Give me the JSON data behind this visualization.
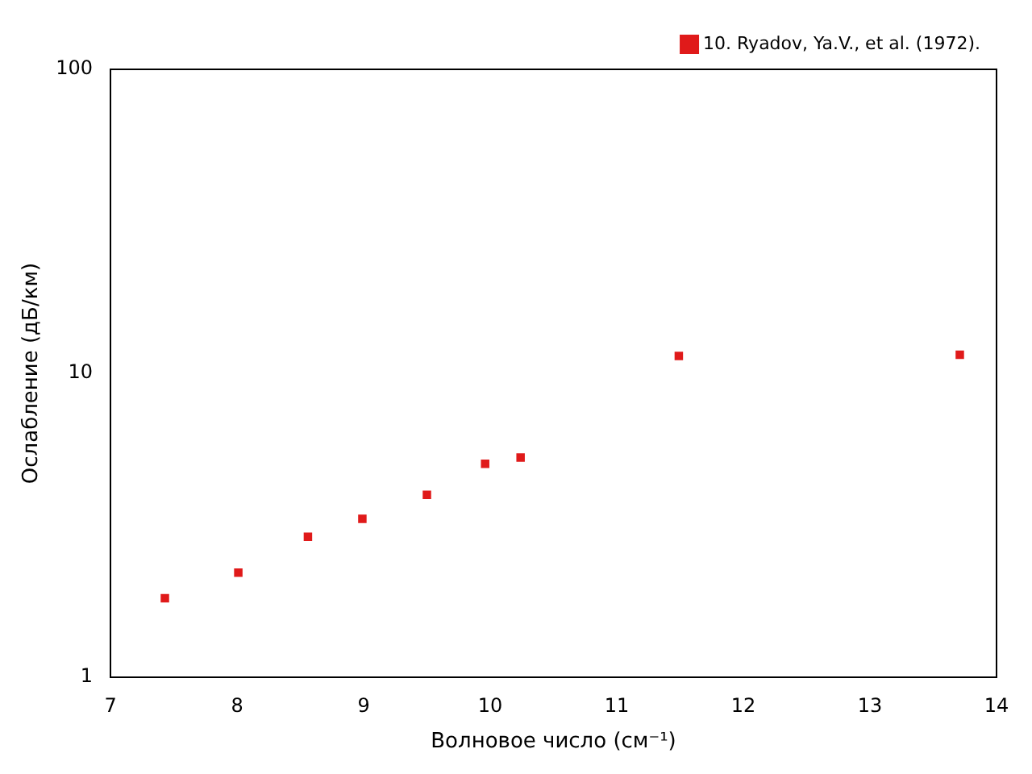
{
  "chart_data": {
    "type": "scatter",
    "xlabel": "Волновое число (см⁻¹)",
    "ylabel": "Ослабление (дБ/км)",
    "log": "y",
    "xlim": [
      7,
      14
    ],
    "xticks": [
      7,
      8,
      9,
      10,
      11,
      12,
      13,
      14
    ],
    "ylim": [
      1,
      100
    ],
    "yticks": [
      1,
      10,
      100
    ],
    "grid": false,
    "legend": "top right",
    "marker": "square",
    "series": [
      {
        "name": "10. Ryadov, Ya.V., et al. (1972).",
        "color": "#e01a1a",
        "x": [
          7.43,
          8.01,
          8.56,
          8.99,
          9.5,
          9.96,
          10.24,
          11.49,
          13.71
        ],
        "values": [
          1.82,
          2.21,
          2.9,
          3.32,
          3.98,
          5.04,
          5.28,
          11.4,
          11.5
        ]
      }
    ]
  }
}
